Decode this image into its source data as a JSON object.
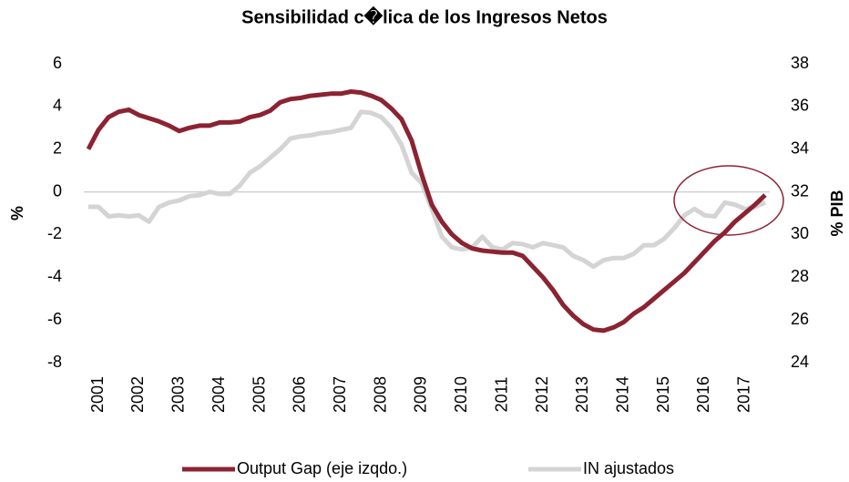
{
  "chart_data": {
    "type": "line",
    "title": "Sensibilidad c�lica de los Ingresos Netos",
    "ylabel": "%",
    "y2label": "% PIB",
    "categories": [
      null,
      "2001",
      null,
      null,
      null,
      "2002",
      null,
      null,
      null,
      "2003",
      null,
      null,
      null,
      "2004",
      null,
      null,
      null,
      "2005",
      null,
      null,
      null,
      "2006",
      null,
      null,
      null,
      "2007",
      null,
      null,
      null,
      "2008",
      null,
      null,
      null,
      "2009",
      null,
      null,
      null,
      "2010",
      null,
      null,
      null,
      "2011",
      null,
      null,
      null,
      "2012",
      null,
      null,
      null,
      "2013",
      null,
      null,
      null,
      "2014",
      null,
      null,
      null,
      "2015",
      null,
      null,
      null,
      "2016",
      null,
      null,
      null,
      "2017",
      null,
      null
    ],
    "series": [
      {
        "name": "Output Gap (eje izqdo.)",
        "color": "#8b2332",
        "values": [
          2.0,
          2.9,
          3.5,
          3.75,
          3.85,
          3.6,
          3.45,
          3.3,
          3.1,
          2.85,
          3.0,
          3.1,
          3.1,
          3.25,
          3.25,
          3.3,
          3.5,
          3.6,
          3.8,
          4.2,
          4.35,
          4.4,
          4.5,
          4.55,
          4.6,
          4.6,
          4.7,
          4.65,
          4.5,
          4.3,
          3.9,
          3.4,
          2.4,
          0.8,
          -0.6,
          -1.4,
          -2.0,
          -2.4,
          -2.65,
          -2.75,
          -2.8,
          -2.85,
          -2.85,
          -3.0,
          -3.5,
          -4.0,
          -4.6,
          -5.3,
          -5.8,
          -6.2,
          -6.45,
          -6.5,
          -6.35,
          -6.1,
          -5.7,
          -5.4,
          -5.0,
          -4.6,
          -4.2,
          -3.8,
          -3.3,
          -2.8,
          -2.3,
          -1.9,
          -1.4,
          -1.0,
          -0.6,
          -0.15
        ]
      },
      {
        "name": "IN ajustados",
        "color": "#d4d4d4",
        "axis": "y2",
        "values": [
          31.3,
          31.3,
          30.85,
          30.9,
          30.85,
          30.9,
          30.6,
          31.3,
          31.5,
          31.6,
          31.8,
          31.85,
          32.0,
          31.9,
          31.9,
          32.3,
          32.9,
          33.2,
          33.6,
          34.0,
          34.5,
          34.6,
          34.65,
          34.75,
          34.8,
          34.9,
          35.0,
          35.75,
          35.7,
          35.5,
          35.0,
          34.2,
          32.9,
          32.4,
          31.2,
          29.9,
          29.4,
          29.3,
          29.4,
          29.9,
          29.4,
          29.3,
          29.6,
          29.55,
          29.4,
          29.6,
          29.5,
          29.4,
          29.0,
          28.8,
          28.5,
          28.8,
          28.9,
          28.9,
          29.1,
          29.5,
          29.5,
          29.8,
          30.3,
          30.9,
          31.2,
          30.9,
          30.85,
          31.5,
          31.4,
          31.2,
          31.3,
          31.5
        ]
      }
    ],
    "ylim": [
      -8,
      6
    ],
    "yticks": [
      6,
      4,
      2,
      0,
      -2,
      -4,
      -6,
      -8
    ],
    "y2lim": [
      24,
      38
    ],
    "y2ticks": [
      38,
      36,
      34,
      32,
      30,
      28,
      26,
      24
    ],
    "legend": "bottom"
  }
}
